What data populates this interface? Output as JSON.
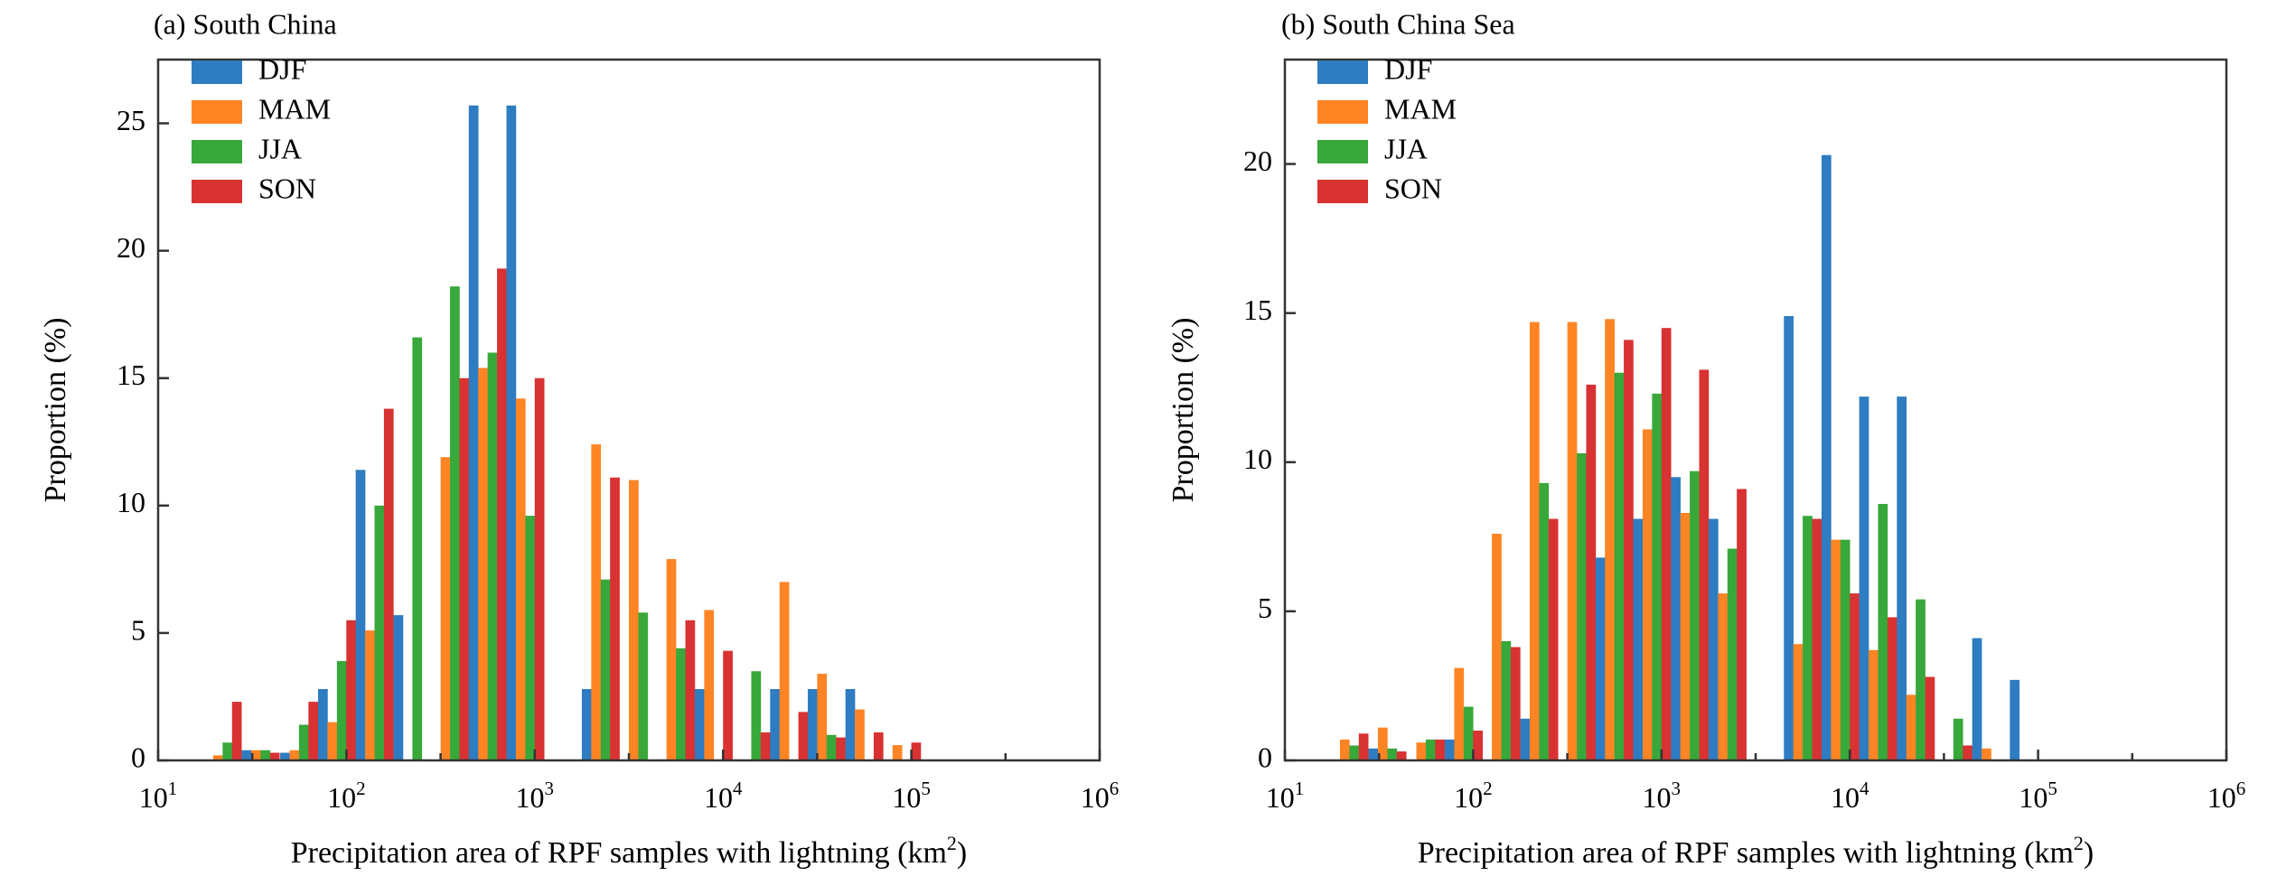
{
  "colors": {
    "DJF": "#2e7cc1",
    "MAM": "#ff8424",
    "JJA": "#38a83a",
    "SON": "#d83232"
  },
  "chart_data": [
    {
      "type": "bar",
      "title": "(a) South China",
      "xlabel_main": "Precipitation area of RPF samples with lightning (km",
      "xlabel_sup": "2",
      "xlabel_close": ")",
      "ylabel": "Proportion (%)",
      "x_scale": "log",
      "xlim": [
        10,
        1000000
      ],
      "ylim": [
        0,
        27.5
      ],
      "yticks": [
        "0",
        "5",
        "10",
        "15",
        "20",
        "25"
      ],
      "ytick_values": [
        0,
        5,
        10,
        15,
        20,
        25
      ],
      "xticks": [
        {
          "base": "10",
          "exp": "1",
          "value": 10
        },
        {
          "base": "10",
          "exp": "2",
          "value": 100
        },
        {
          "base": "10",
          "exp": "3",
          "value": 1000
        },
        {
          "base": "10",
          "exp": "4",
          "value": 10000
        },
        {
          "base": "10",
          "exp": "5",
          "value": 100000
        },
        {
          "base": "10",
          "exp": "6",
          "value": 1000000
        }
      ],
      "legend_position": "top-left",
      "bin_centers": [
        22,
        35,
        56,
        89,
        141,
        224,
        355,
        562,
        891,
        1413,
        2239,
        3548,
        5623,
        8913,
        14125,
        22387,
        35481,
        56234,
        89125,
        141254
      ],
      "series": [
        {
          "name": "DJF",
          "values": [
            0,
            0.4,
            0.3,
            2.8,
            11.4,
            5.7,
            0,
            25.7,
            25.7,
            0,
            2.8,
            0,
            0,
            2.8,
            0,
            2.8,
            2.8,
            2.8,
            0,
            0
          ]
        },
        {
          "name": "MAM",
          "values": [
            0.2,
            0.4,
            0.4,
            1.5,
            5.1,
            0,
            11.9,
            15.4,
            14.2,
            0,
            12.4,
            11.0,
            7.9,
            5.9,
            0,
            7.0,
            3.4,
            2.0,
            0.6,
            0
          ]
        },
        {
          "name": "JJA",
          "values": [
            0.7,
            0.4,
            1.4,
            3.9,
            10.0,
            16.6,
            18.6,
            16.0,
            9.6,
            0,
            7.1,
            5.8,
            4.4,
            0,
            3.5,
            0,
            1.0,
            0,
            0,
            0
          ]
        },
        {
          "name": "SON",
          "values": [
            2.3,
            0.3,
            2.3,
            5.5,
            13.8,
            0,
            15.0,
            19.3,
            15.0,
            0,
            11.1,
            0,
            5.5,
            4.3,
            1.1,
            1.9,
            0.9,
            1.1,
            0.7,
            0
          ]
        }
      ]
    },
    {
      "type": "bar",
      "title": "(b) South China Sea",
      "xlabel_main": "Precipitation area of RPF samples with lightning (km",
      "xlabel_sup": "2",
      "xlabel_close": ")",
      "ylabel": "Proportion (%)",
      "x_scale": "log",
      "xlim": [
        10,
        1000000
      ],
      "ylim": [
        0,
        23.5
      ],
      "yticks": [
        "0",
        "5",
        "10",
        "15",
        "20"
      ],
      "ytick_values": [
        0,
        5,
        10,
        15,
        20
      ],
      "xticks": [
        {
          "base": "10",
          "exp": "1",
          "value": 10
        },
        {
          "base": "10",
          "exp": "2",
          "value": 100
        },
        {
          "base": "10",
          "exp": "3",
          "value": 1000
        },
        {
          "base": "10",
          "exp": "4",
          "value": 10000
        },
        {
          "base": "10",
          "exp": "5",
          "value": 100000
        },
        {
          "base": "10",
          "exp": "6",
          "value": 1000000
        }
      ],
      "legend_position": "top-left",
      "bin_centers": [
        22,
        35,
        56,
        89,
        141,
        224,
        355,
        562,
        891,
        1413,
        2239,
        3548,
        5623,
        8913,
        14125,
        22387,
        35481,
        56234,
        89125,
        141254
      ],
      "series": [
        {
          "name": "DJF",
          "values": [
            0,
            0.4,
            0,
            0.7,
            0,
            1.4,
            0,
            6.8,
            8.1,
            9.5,
            8.1,
            0,
            14.9,
            20.3,
            12.2,
            12.2,
            0,
            4.1,
            2.7,
            0
          ]
        },
        {
          "name": "MAM",
          "values": [
            0.7,
            1.1,
            0.6,
            3.1,
            7.6,
            14.7,
            14.7,
            14.8,
            11.1,
            8.3,
            5.6,
            0,
            3.9,
            7.4,
            3.7,
            2.2,
            0,
            0.4,
            0,
            0
          ]
        },
        {
          "name": "JJA",
          "values": [
            0.5,
            0.4,
            0.7,
            1.8,
            4.0,
            9.3,
            10.3,
            13.0,
            12.3,
            9.7,
            7.1,
            0,
            8.2,
            7.4,
            8.6,
            5.4,
            1.4,
            0,
            0,
            0
          ]
        },
        {
          "name": "SON",
          "values": [
            0.9,
            0.3,
            0.7,
            1.0,
            3.8,
            8.1,
            12.6,
            14.1,
            14.5,
            13.1,
            9.1,
            0,
            8.1,
            5.6,
            4.8,
            2.8,
            0.5,
            0,
            0,
            0
          ]
        }
      ]
    }
  ]
}
